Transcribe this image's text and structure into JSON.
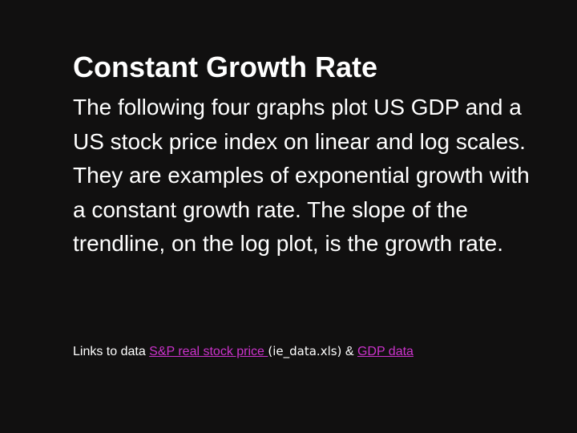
{
  "slide": {
    "title": "Constant Growth Rate",
    "body": "The following four graphs plot US GDP and a US stock price index on linear and log scales. They are examples of exponential growth with a constant growth rate. The slope of the trendline, on the log plot, is the growth rate.",
    "links": {
      "prefix": "Links to data ",
      "link1_label": "S&P real stock price ",
      "file_note": "(ie_data.xls)",
      "separator": " & ",
      "link2_label": "GDP data "
    }
  },
  "colors": {
    "background": "#111010",
    "text": "#ffffff",
    "link": "#cc33cc"
  }
}
